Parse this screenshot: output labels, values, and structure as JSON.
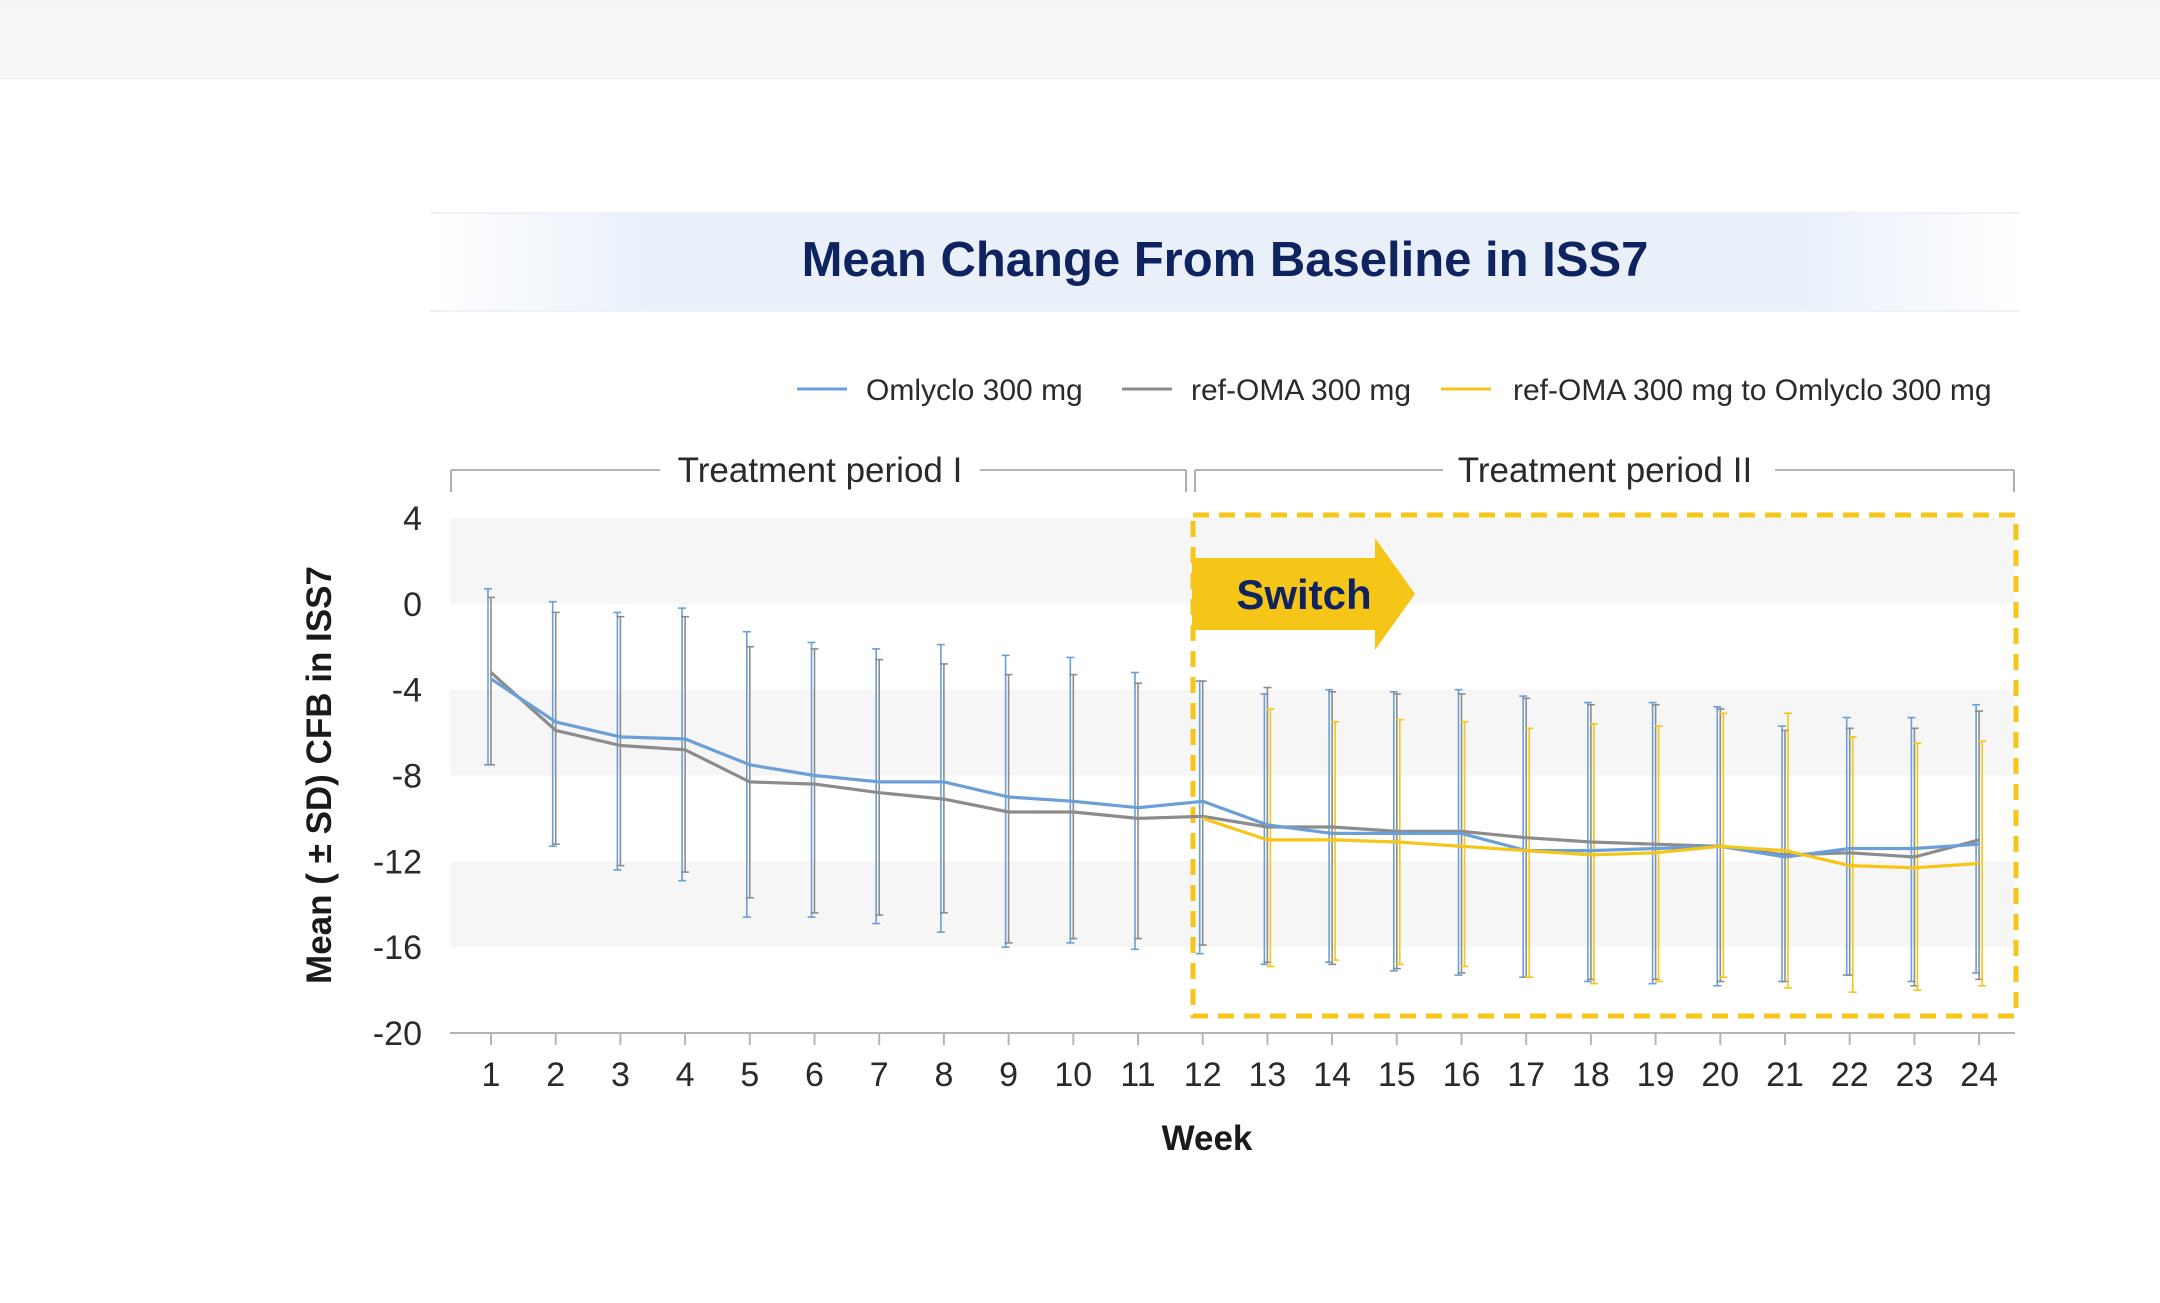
{
  "chart_data": {
    "type": "line",
    "title": "Mean Change From Baseline in ISS7",
    "xlabel": "Week",
    "ylabel": "Mean ( ± SD) CFB in ISS7",
    "x": [
      1,
      2,
      3,
      4,
      5,
      6,
      7,
      8,
      9,
      10,
      11,
      12,
      13,
      14,
      15,
      16,
      17,
      18,
      19,
      20,
      21,
      22,
      23,
      24
    ],
    "ylim": [
      -20,
      4
    ],
    "yticks": [
      4,
      0,
      -4,
      -8,
      -12,
      -16,
      -20
    ],
    "xticks": [
      "1",
      "2",
      "3",
      "4",
      "5",
      "6",
      "7",
      "8",
      "9",
      "10",
      "11",
      "12",
      "13",
      "14",
      "15",
      "16",
      "17",
      "18",
      "19",
      "20",
      "21",
      "22",
      "23",
      "24"
    ],
    "legend_position": "top-right",
    "series": [
      {
        "name": "Omlyclo 300 mg",
        "color": "#6a9fd8",
        "values": [
          -3.5,
          -5.5,
          -6.2,
          -6.3,
          -7.5,
          -8.0,
          -8.3,
          -8.3,
          -9.0,
          -9.2,
          -9.5,
          -9.2,
          -10.3,
          -10.7,
          -10.7,
          -10.7,
          -11.5,
          -11.5,
          -11.4,
          -11.3,
          -11.8,
          -11.4,
          -11.4,
          -11.2
        ],
        "sd_upper": [
          0.7,
          0.1,
          -0.4,
          -0.2,
          -1.3,
          -1.8,
          -2.1,
          -1.9,
          -2.4,
          -2.5,
          -3.2,
          -3.6,
          -4.2,
          -4.0,
          -4.1,
          -4.0,
          -4.3,
          -4.6,
          -4.6,
          -4.8,
          -5.7,
          -5.3,
          -5.3,
          -4.7
        ],
        "sd_lower": [
          -7.5,
          -11.3,
          -12.4,
          -12.9,
          -14.6,
          -14.6,
          -14.9,
          -15.3,
          -16.0,
          -15.8,
          -16.1,
          -16.3,
          -16.8,
          -16.7,
          -17.1,
          -17.3,
          -17.4,
          -17.6,
          -17.7,
          -17.8,
          -17.6,
          -17.3,
          -17.6,
          -17.2
        ]
      },
      {
        "name": "ref-OMA 300 mg",
        "color": "#8c8c8c",
        "values": [
          -3.2,
          -5.9,
          -6.6,
          -6.8,
          -8.3,
          -8.4,
          -8.8,
          -9.1,
          -9.7,
          -9.7,
          -10.0,
          -9.9,
          -10.4,
          -10.4,
          -10.6,
          -10.6,
          -10.9,
          -11.1,
          -11.2,
          -11.3,
          -11.7,
          -11.6,
          -11.8,
          -11.0
        ],
        "sd_upper": [
          0.3,
          -0.4,
          -0.6,
          -0.6,
          -2.0,
          -2.1,
          -2.6,
          -2.8,
          -3.3,
          -3.3,
          -3.7,
          -3.6,
          -3.9,
          -4.1,
          -4.2,
          -4.2,
          -4.4,
          -4.7,
          -4.7,
          -4.9,
          -5.9,
          -5.8,
          -5.8,
          -5.0
        ],
        "sd_lower": [
          -7.5,
          -11.2,
          -12.2,
          -12.5,
          -13.7,
          -14.4,
          -14.5,
          -14.4,
          -15.8,
          -15.6,
          -15.6,
          -15.9,
          -16.7,
          -16.8,
          -17.0,
          -17.2,
          -17.4,
          -17.5,
          -17.5,
          -17.6,
          -17.6,
          -17.3,
          -17.8,
          -17.5
        ]
      },
      {
        "name": "ref-OMA 300 mg to Omlyclo 300 mg",
        "color": "#f5c518",
        "x": [
          12,
          13,
          14,
          15,
          16,
          17,
          18,
          19,
          20,
          21,
          22,
          23,
          24
        ],
        "values": [
          -10.0,
          -11.0,
          -11.0,
          -11.1,
          -11.3,
          -11.5,
          -11.7,
          -11.6,
          -11.3,
          -11.5,
          -12.2,
          -12.3,
          -12.1
        ],
        "sd_upper": [
          -10.0,
          -4.9,
          -5.5,
          -5.4,
          -5.5,
          -5.8,
          -5.6,
          -5.7,
          -5.1,
          -5.1,
          -6.2,
          -6.5,
          -6.4
        ],
        "sd_lower": [
          -10.0,
          -16.9,
          -16.6,
          -16.8,
          -16.9,
          -17.4,
          -17.7,
          -17.6,
          -17.4,
          -17.9,
          -18.1,
          -18.0,
          -17.8
        ]
      }
    ],
    "annotations": {
      "period_1": "Treatment period I",
      "period_2": "Treatment period II",
      "switch_label": "Switch",
      "highlight_color": "#f5c518"
    }
  }
}
